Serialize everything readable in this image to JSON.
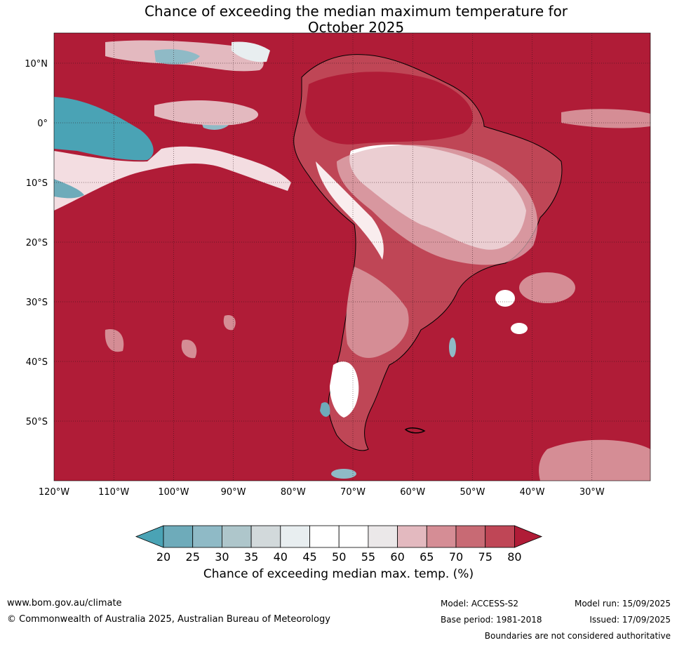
{
  "title": {
    "line1": "Chance of exceeding the median maximum temperature for",
    "line2": "October 2025"
  },
  "axes": {
    "lat_ticks": [
      "10°N",
      "0°",
      "10°S",
      "20°S",
      "30°S",
      "40°S",
      "50°S"
    ],
    "lon_ticks": [
      "120°W",
      "110°W",
      "100°W",
      "90°W",
      "80°W",
      "70°W",
      "60°W",
      "50°W",
      "40°W",
      "30°W"
    ]
  },
  "colorbar": {
    "title": "Chance of exceeding median max. temp. (%)",
    "ticks": [
      "20",
      "25",
      "30",
      "35",
      "40",
      "45",
      "50",
      "55",
      "60",
      "65",
      "70",
      "75",
      "80"
    ],
    "colors": [
      "#4aa3b5",
      "#6eabba",
      "#8fbac6",
      "#aec6cb",
      "#d2d9db",
      "#e8eef0",
      "#ffffff",
      "#ffffff",
      "#ebe8e9",
      "#e3b9bf",
      "#d58d95",
      "#c86a74",
      "#bf4656",
      "#b01c37"
    ]
  },
  "map": {
    "ocean_color": "#b01c37",
    "grid_color": "#2a1015"
  },
  "footer": {
    "website": "www.bom.gov.au/climate",
    "copyright": "© Commonwealth of Australia 2025, Australian Bureau of Meteorology",
    "model": "Model: ACCESS-S2",
    "base_period": "Base period: 1981-2018",
    "model_run": "Model run: 15/09/2025",
    "issued": "Issued: 17/09/2025",
    "disclaimer": "Boundaries are not considered authoritative"
  }
}
